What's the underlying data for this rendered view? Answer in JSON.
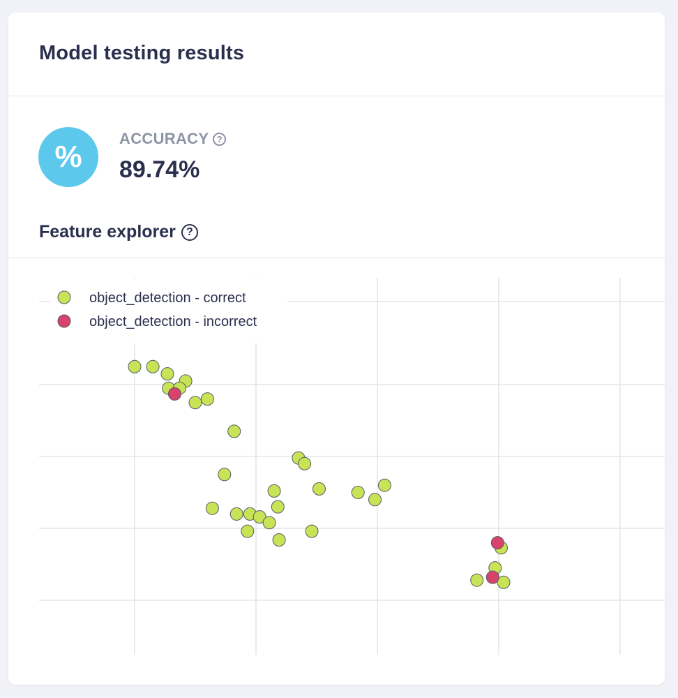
{
  "card": {
    "title": "Model testing results"
  },
  "metric": {
    "icon": "percent-icon",
    "icon_glyph": "%",
    "label": "ACCURACY",
    "value": "89.74%",
    "help_icon": "help-circle-icon",
    "accent_color": "#5bc8ec"
  },
  "explorer": {
    "title": "Feature explorer",
    "help_icon": "help-circle-icon"
  },
  "chart_data": {
    "type": "scatter",
    "title": "",
    "xlabel": "",
    "ylabel": "",
    "grid": true,
    "legend_position": "top-left",
    "xlim": [
      -0.8,
      4.2
    ],
    "ylim": [
      -1,
      3.5
    ],
    "series": [
      {
        "name": "object_detection - correct",
        "color": "#c8e356",
        "points": [
          [
            0.0,
            2.25
          ],
          [
            0.15,
            2.25
          ],
          [
            0.27,
            2.15
          ],
          [
            0.42,
            2.05
          ],
          [
            0.28,
            1.95
          ],
          [
            0.37,
            1.95
          ],
          [
            0.5,
            1.75
          ],
          [
            0.6,
            1.8
          ],
          [
            0.82,
            1.35
          ],
          [
            0.74,
            0.75
          ],
          [
            1.35,
            0.98
          ],
          [
            1.4,
            0.9
          ],
          [
            1.15,
            0.52
          ],
          [
            1.52,
            0.55
          ],
          [
            1.84,
            0.5
          ],
          [
            1.98,
            0.4
          ],
          [
            2.06,
            0.6
          ],
          [
            0.64,
            0.28
          ],
          [
            0.84,
            0.2
          ],
          [
            0.95,
            0.2
          ],
          [
            1.03,
            0.16
          ],
          [
            1.11,
            0.08
          ],
          [
            1.18,
            0.3
          ],
          [
            0.93,
            -0.04
          ],
          [
            1.19,
            -0.16
          ],
          [
            1.46,
            -0.04
          ],
          [
            3.02,
            -0.27
          ],
          [
            2.97,
            -0.55
          ],
          [
            2.82,
            -0.72
          ],
          [
            3.04,
            -0.75
          ]
        ]
      },
      {
        "name": "object_detection - incorrect",
        "color": "#d8436b",
        "points": [
          [
            0.33,
            1.87
          ],
          [
            2.99,
            -0.2
          ],
          [
            2.95,
            -0.68
          ]
        ]
      }
    ],
    "x_gridlines": [
      0,
      1,
      2,
      3,
      4
    ],
    "y_gridlines": [
      2,
      1,
      0,
      -1
    ]
  }
}
